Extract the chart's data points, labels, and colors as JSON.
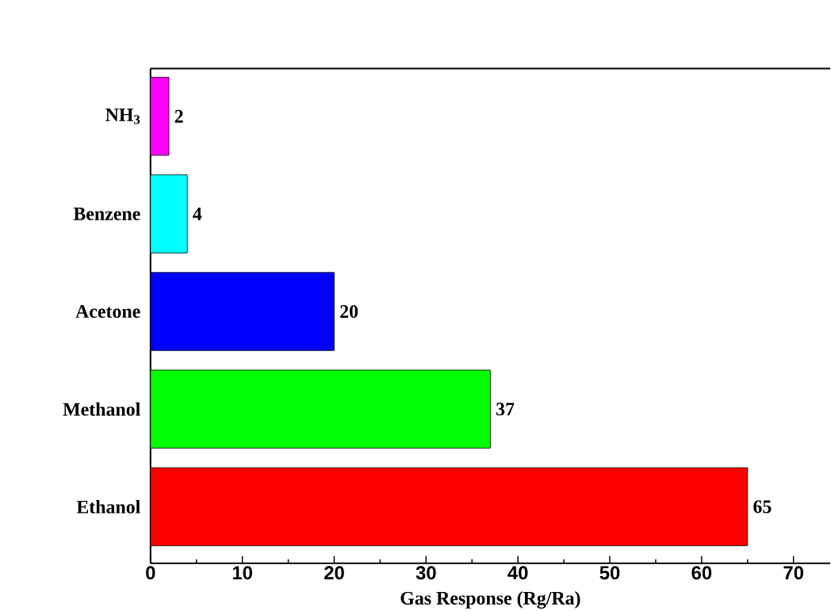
{
  "chart_data": {
    "type": "bar",
    "orientation": "horizontal",
    "xlabel": "Gas Response (Rg/Ra)",
    "categories": [
      "NH$_{3}$",
      "Benzene",
      "Acetone",
      "Methanol",
      "Ethanol"
    ],
    "values": [
      2,
      4,
      20,
      37,
      65
    ],
    "colors": [
      "#ff00ff",
      "#00ffff",
      "#0000ff",
      "#00ff00",
      "#ff0000"
    ],
    "xlim": [
      0,
      74
    ],
    "xticks": [
      0,
      10,
      20,
      30,
      40,
      50,
      60,
      70
    ],
    "grid": "y",
    "data_labels": true
  }
}
